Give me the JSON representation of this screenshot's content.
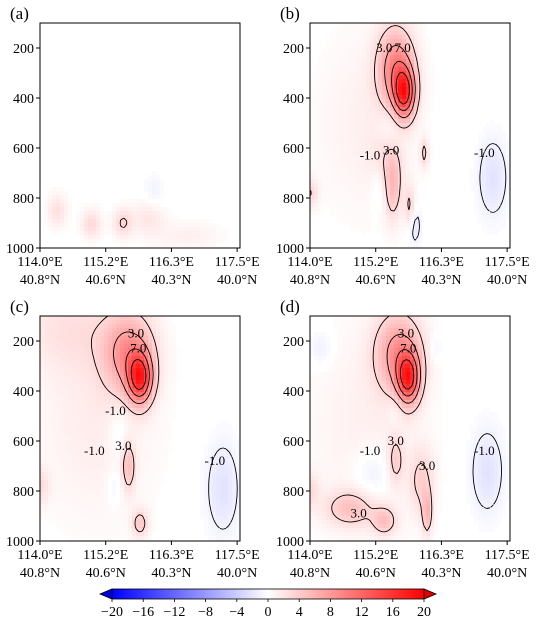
{
  "chart_data": {
    "type": "heatmap",
    "description_units": "vertical cross-section, y axis pressure (hPa, inverted), x axis position along transect",
    "panels": [
      {
        "label": "(a)",
        "blobs": [
          {
            "x": 0.3,
            "p": 850,
            "sx": 0.12,
            "sp": 45,
            "v": 2.5
          },
          {
            "x": 0.9,
            "p": 905,
            "sx": 0.12,
            "sp": 40,
            "v": 3.0
          },
          {
            "x": 1.45,
            "p": 900,
            "sx": 0.12,
            "sp": 40,
            "v": 3.2
          },
          {
            "x": 1.9,
            "p": 880,
            "sx": 0.2,
            "sp": 50,
            "v": 2.0
          },
          {
            "x": 2.6,
            "p": 950,
            "sx": 0.4,
            "sp": 40,
            "v": 1.2
          },
          {
            "x": 2.0,
            "p": 780,
            "sx": 0.12,
            "sp": 50,
            "v": -1.0
          }
        ],
        "contour_labels": []
      },
      {
        "label": "(b)",
        "blobs": [
          {
            "x": 1.5,
            "p": 280,
            "sx": 0.22,
            "sp": 110,
            "v": 9.0
          },
          {
            "x": 1.65,
            "p": 380,
            "sx": 0.13,
            "sp": 70,
            "v": 14.0
          },
          {
            "x": 1.35,
            "p": 650,
            "sx": 0.2,
            "sp": 80,
            "v": 2.0
          },
          {
            "x": 1.45,
            "p": 760,
            "sx": 0.1,
            "sp": 90,
            "v": 4.5
          },
          {
            "x": 2.0,
            "p": 620,
            "sx": 0.05,
            "sp": 40,
            "v": 3.5
          },
          {
            "x": 1.75,
            "p": 840,
            "sx": 0.07,
            "sp": 60,
            "v": 3.8
          },
          {
            "x": 0.0,
            "p": 780,
            "sx": 0.1,
            "sp": 40,
            "v": 3.0
          },
          {
            "x": 1.4,
            "p": 520,
            "sx": 0.15,
            "sp": 60,
            "v": -1.5
          },
          {
            "x": 1.2,
            "p": 750,
            "sx": 0.1,
            "sp": 70,
            "v": -1.3
          },
          {
            "x": 1.82,
            "p": 900,
            "sx": 0.08,
            "sp": 60,
            "v": -2.5
          },
          {
            "x": 3.2,
            "p": 720,
            "sx": 0.18,
            "sp": 110,
            "v": -2.2
          },
          {
            "x": 1.0,
            "p": 500,
            "sx": 0.6,
            "sp": 250,
            "v": 1.2
          }
        ],
        "contour_labels": [
          {
            "text": "3.0",
            "x": 1.3,
            "p": 200
          },
          {
            "text": "7.0",
            "x": 1.62,
            "p": 200
          },
          {
            "text": "-1.0",
            "x": 1.05,
            "p": 630
          },
          {
            "text": "3.0",
            "x": 1.42,
            "p": 610
          },
          {
            "text": "-1.0",
            "x": 3.05,
            "p": 620
          }
        ]
      },
      {
        "label": "(c)",
        "blobs": [
          {
            "x": 1.55,
            "p": 250,
            "sx": 0.3,
            "sp": 110,
            "v": 8.0
          },
          {
            "x": 1.75,
            "p": 350,
            "sx": 0.15,
            "sp": 70,
            "v": 14.0
          },
          {
            "x": 1.55,
            "p": 700,
            "sx": 0.08,
            "sp": 70,
            "v": 4.5
          },
          {
            "x": 1.75,
            "p": 930,
            "sx": 0.1,
            "sp": 40,
            "v": 4.0
          },
          {
            "x": 0.0,
            "p": 780,
            "sx": 0.12,
            "sp": 50,
            "v": 2.5
          },
          {
            "x": 0.5,
            "p": 150,
            "sx": 0.6,
            "sp": 120,
            "v": 2.0
          },
          {
            "x": 1.4,
            "p": 560,
            "sx": 0.15,
            "sp": 80,
            "v": -1.5
          },
          {
            "x": 1.3,
            "p": 780,
            "sx": 0.1,
            "sp": 50,
            "v": -1.3
          },
          {
            "x": 3.2,
            "p": 790,
            "sx": 0.2,
            "sp": 130,
            "v": -2.2
          },
          {
            "x": 1.0,
            "p": 500,
            "sx": 0.7,
            "sp": 280,
            "v": 1.5
          }
        ],
        "contour_labels": [
          {
            "text": "3.0",
            "x": 1.68,
            "p": 170
          },
          {
            "text": "7.0",
            "x": 1.72,
            "p": 230
          },
          {
            "text": "-1.0",
            "x": 1.32,
            "p": 480
          },
          {
            "text": "-1.0",
            "x": 0.95,
            "p": 640
          },
          {
            "text": "3.0",
            "x": 1.46,
            "p": 620
          },
          {
            "text": "-1.0",
            "x": 3.06,
            "p": 680
          }
        ]
      },
      {
        "label": "(d)",
        "blobs": [
          {
            "x": 1.55,
            "p": 250,
            "sx": 0.28,
            "sp": 110,
            "v": 8.0
          },
          {
            "x": 1.72,
            "p": 350,
            "sx": 0.14,
            "sp": 70,
            "v": 14.0
          },
          {
            "x": 1.5,
            "p": 680,
            "sx": 0.1,
            "sp": 70,
            "v": 3.5
          },
          {
            "x": 1.95,
            "p": 760,
            "sx": 0.15,
            "sp": 90,
            "v": 3.5
          },
          {
            "x": 2.05,
            "p": 890,
            "sx": 0.06,
            "sp": 60,
            "v": 5.0
          },
          {
            "x": 0.7,
            "p": 870,
            "sx": 0.3,
            "sp": 50,
            "v": 4.5
          },
          {
            "x": 1.3,
            "p": 920,
            "sx": 0.15,
            "sp": 40,
            "v": 4.5
          },
          {
            "x": 0.0,
            "p": 800,
            "sx": 0.12,
            "sp": 50,
            "v": 2.5
          },
          {
            "x": 0.2,
            "p": 230,
            "sx": 0.15,
            "sp": 50,
            "v": -1.3
          },
          {
            "x": 1.1,
            "p": 730,
            "sx": 0.25,
            "sp": 80,
            "v": -1.8
          },
          {
            "x": 1.5,
            "p": 470,
            "sx": 0.1,
            "sp": 50,
            "v": -1.3
          },
          {
            "x": 3.1,
            "p": 720,
            "sx": 0.2,
            "sp": 120,
            "v": -2.2
          },
          {
            "x": 2.2,
            "p": 230,
            "sx": 0.08,
            "sp": 40,
            "v": -1.2
          },
          {
            "x": 1.0,
            "p": 550,
            "sx": 0.7,
            "sp": 300,
            "v": 1.2
          }
        ],
        "contour_labels": [
          {
            "text": "3.0",
            "x": 1.68,
            "p": 170
          },
          {
            "text": "7.0",
            "x": 1.72,
            "p": 230
          },
          {
            "text": "-1.0",
            "x": 1.05,
            "p": 640
          },
          {
            "text": "3.0",
            "x": 1.5,
            "p": 600
          },
          {
            "text": "3.0",
            "x": 2.05,
            "p": 700
          },
          {
            "text": "3.0",
            "x": 0.85,
            "p": 890
          },
          {
            "text": "-1.0",
            "x": 3.05,
            "p": 640
          }
        ]
      }
    ],
    "xlim": [
      0,
      3.5
    ],
    "ylim": [
      1000,
      100
    ],
    "xticks": [
      0,
      1.15,
      2.3,
      3.45
    ],
    "xtick_labels": [
      {
        "lon": "114.0°E",
        "lat": "40.8°N"
      },
      {
        "lon": "115.2°E",
        "lat": "40.6°N"
      },
      {
        "lon": "116.3°E",
        "lat": "40.3°N"
      },
      {
        "lon": "117.5°E",
        "lat": "40.0°N"
      }
    ],
    "yticks": [
      200,
      400,
      600,
      800,
      1000
    ],
    "ytick_labels": [
      "200",
      "400",
      "600",
      "800",
      "1000"
    ],
    "contour_levels": [
      -1.0,
      3.0,
      7.0,
      11.0,
      15.0
    ],
    "colorbar": {
      "range": [
        -20,
        20
      ],
      "ticks": [
        -20,
        -16,
        -12,
        -8,
        -4,
        0,
        4,
        8,
        12,
        16,
        20
      ],
      "tick_labels": [
        "−20",
        "−16",
        "−12",
        "−8",
        "−4",
        "0",
        "4",
        "8",
        "12",
        "16",
        "20"
      ],
      "cmap": "bwr",
      "extend": "both"
    }
  }
}
